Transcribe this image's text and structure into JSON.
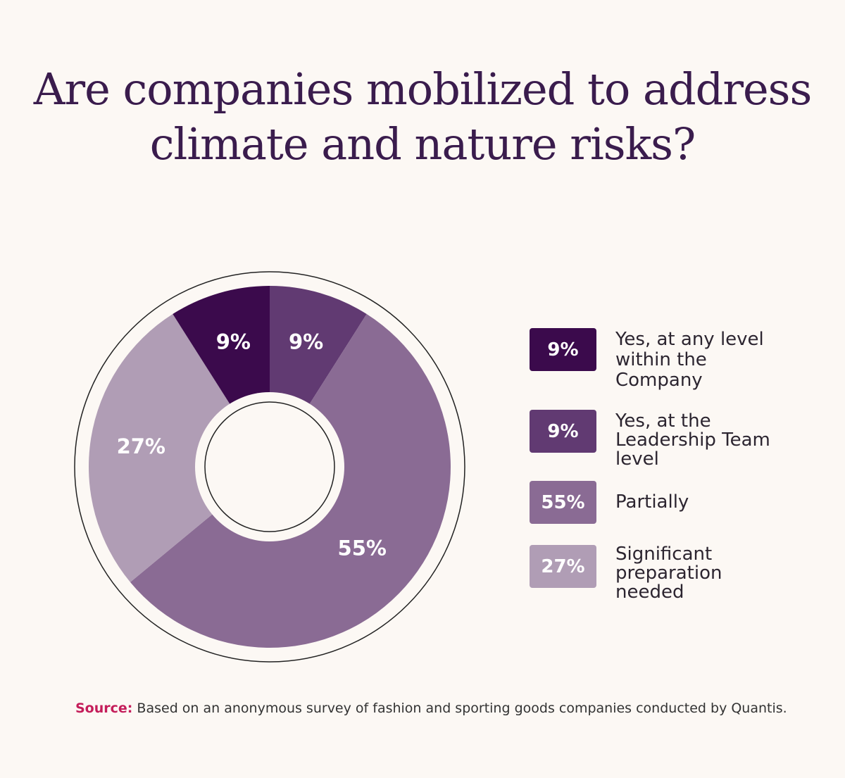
{
  "chart_data": {
    "type": "pie",
    "title": "Are companies mobilized to address climate and nature risks?",
    "slices": [
      {
        "label": "Yes, at any level within the Company",
        "value": 9,
        "display": "9%",
        "color": "#3b0a4c"
      },
      {
        "label": "Yes, at the Leadership Team level",
        "value": 9,
        "display": "9%",
        "color": "#613a72"
      },
      {
        "label": "Partially",
        "value": 55,
        "display": "55%",
        "color": "#8a6b94"
      },
      {
        "label": "Significant preparation needed",
        "value": 27,
        "display": "27%",
        "color": "#b09db5"
      }
    ],
    "legend_position": "right"
  },
  "source": {
    "label": "Source:",
    "text": " Based on an anonymous survey of fashion and sporting goods companies conducted by Quantis."
  }
}
